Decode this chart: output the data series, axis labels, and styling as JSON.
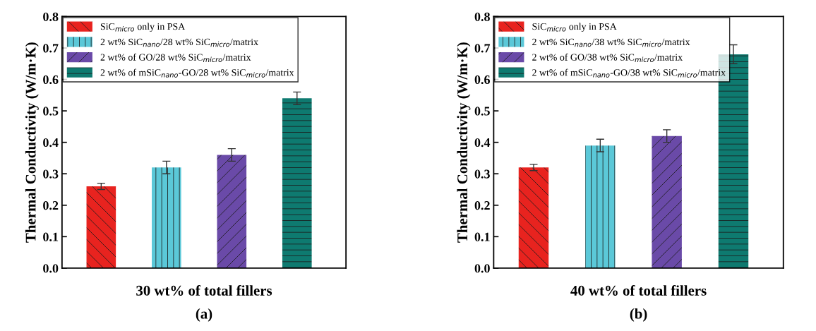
{
  "chart_data": [
    {
      "type": "bar",
      "xlabel": "30 wt% of total fillers",
      "ylabel": "Thermal Conductivity (W/m·K)",
      "annotations": [
        "(a)"
      ],
      "categories": [
        null,
        null,
        null,
        null
      ],
      "series": [
        {
          "name": "SiC$_{micro}$ only in PSA",
          "color": "#e8231f",
          "values": [
            0.26,
            null,
            null,
            null
          ],
          "errors": [
            0.01,
            null,
            null,
            null
          ]
        },
        {
          "name": "2 wt% SiC$_{nano}$/28 wt% SiC$_{micro}$/matrix",
          "color": "#5bc8d8",
          "values": [
            null,
            0.32,
            null,
            null
          ],
          "errors": [
            null,
            0.02,
            null,
            null
          ]
        },
        {
          "name": "2 wt% of GO/28 wt% SiC$_{micro}$/matrix",
          "color": "#6a4aa8",
          "values": [
            null,
            null,
            0.36,
            null
          ],
          "errors": [
            null,
            null,
            0.02,
            null
          ]
        },
        {
          "name": "2 wt% of mSiC$_{nano}$-GO/28 wt% SiC$_{micro}$/matrix",
          "color": "#0e7a70",
          "values": [
            null,
            null,
            null,
            0.54
          ],
          "errors": [
            null,
            null,
            null,
            0.02
          ]
        }
      ],
      "ylim": [
        0,
        0.8
      ],
      "yticks": [
        {
          "value": 0,
          "label": "0.0"
        },
        0.1,
        0.2,
        0.3,
        0.4,
        0.5,
        0.6,
        0.7,
        0.8
      ],
      "legend": "top left",
      "grid": false
    },
    {
      "type": "bar",
      "xlabel": "40 wt% of total fillers",
      "ylabel": "Thermal Conductivity (W/m·K)",
      "annotations": [
        "(b)"
      ],
      "categories": [
        null,
        null,
        null,
        null
      ],
      "series": [
        {
          "name": "SiC$_{micro}$ only in PSA",
          "color": "#e8231f",
          "values": [
            0.32,
            null,
            null,
            null
          ],
          "errors": [
            0.01,
            null,
            null,
            null
          ]
        },
        {
          "name": "2 wt% SiC$_{nano}$/38 wt% SiC$_{micro}$/matrix",
          "color": "#5bc8d8",
          "values": [
            null,
            0.39,
            null,
            null
          ],
          "errors": [
            null,
            0.02,
            null,
            null
          ]
        },
        {
          "name": "2 wt% of GO/38 wt% SiC$_{micro}$/matrix",
          "color": "#6a4aa8",
          "values": [
            null,
            null,
            0.42,
            null
          ],
          "errors": [
            null,
            null,
            0.02,
            null
          ]
        },
        {
          "name": "2 wt% of mSiC$_{nano}$-GO/38 wt% SiC$_{micro}$/matrix",
          "color": "#0e7a70",
          "values": [
            null,
            null,
            null,
            0.68
          ],
          "errors": [
            null,
            null,
            null,
            0.03
          ]
        }
      ],
      "ylim": [
        0,
        0.8
      ],
      "yticks": [
        {
          "value": 0,
          "label": "0.0"
        },
        0.1,
        0.2,
        0.3,
        0.4,
        0.5,
        0.6,
        0.7,
        0.8
      ],
      "legend": "top left",
      "grid": false
    }
  ]
}
